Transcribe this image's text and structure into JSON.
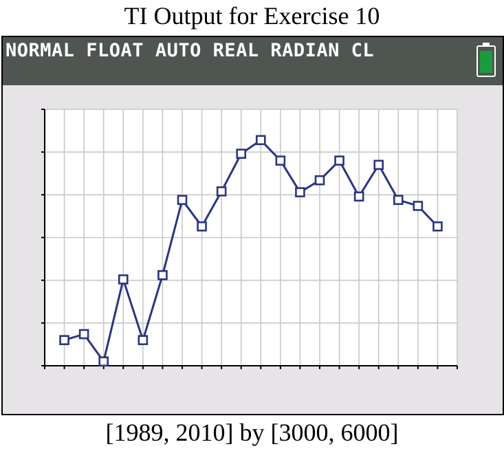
{
  "title": "TI Output for Exercise 10",
  "status_bar": {
    "text": "NORMAL FLOAT AUTO REAL RADIAN CL",
    "battery_icon": "battery-icon",
    "battery_color": "#1d9a3f"
  },
  "window_caption": "[1989, 2010] by [3000, 6000]",
  "colors": {
    "status_bar_bg": "#4f5550",
    "screen_bg": "#e6e4e6",
    "plot_bg": "#ffffff",
    "grid": "#c8c8c8",
    "series": "#2a3580"
  },
  "chart_data": {
    "type": "line",
    "xlim": [
      1989,
      2010
    ],
    "ylim": [
      3000,
      6000
    ],
    "xscl": 1,
    "yscl": 500,
    "grid": true,
    "marker": "hollow-square",
    "series": [
      {
        "x": [
          1990,
          1991,
          1992,
          1993,
          1994,
          1995,
          1996,
          1997,
          1998,
          1999,
          2000,
          2001,
          2002,
          2003,
          2004,
          2005,
          2006,
          2007,
          2008,
          2009
        ],
        "values": [
          3300,
          3370,
          3050,
          4010,
          3300,
          4060,
          4940,
          4630,
          5040,
          5480,
          5640,
          5400,
          5030,
          5170,
          5400,
          4980,
          5350,
          4940,
          4870,
          4630
        ]
      }
    ]
  }
}
